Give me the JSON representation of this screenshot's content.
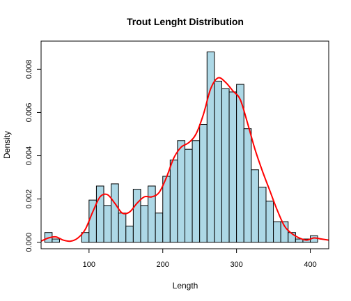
{
  "chart_data": {
    "type": "bar",
    "title": "Trout Lenght Distribution",
    "xlabel": "Length",
    "ylabel": "Density",
    "xlim": [
      35,
      425
    ],
    "ylim": [
      -0.0003,
      0.0093
    ],
    "xticks": [
      100,
      200,
      300,
      400
    ],
    "xtick_labels": [
      "100",
      "200",
      "300",
      "400"
    ],
    "yticks": [
      0.0,
      0.002,
      0.004,
      0.006,
      0.008
    ],
    "ytick_labels": [
      "0.000",
      "0.002",
      "0.004",
      "0.006",
      "0.008"
    ],
    "bin_width": 10,
    "bins": [
      {
        "x0": 40,
        "x1": 50,
        "density": 0.00045
      },
      {
        "x0": 50,
        "x1": 60,
        "density": 0.00015
      },
      {
        "x0": 60,
        "x1": 70,
        "density": 0.0
      },
      {
        "x0": 70,
        "x1": 80,
        "density": 0.0
      },
      {
        "x0": 80,
        "x1": 90,
        "density": 0.0
      },
      {
        "x0": 90,
        "x1": 100,
        "density": 0.00045
      },
      {
        "x0": 100,
        "x1": 110,
        "density": 0.00195
      },
      {
        "x0": 110,
        "x1": 120,
        "density": 0.0026
      },
      {
        "x0": 120,
        "x1": 130,
        "density": 0.0017
      },
      {
        "x0": 130,
        "x1": 140,
        "density": 0.0027
      },
      {
        "x0": 140,
        "x1": 150,
        "density": 0.00135
      },
      {
        "x0": 150,
        "x1": 160,
        "density": 0.00075
      },
      {
        "x0": 160,
        "x1": 170,
        "density": 0.00245
      },
      {
        "x0": 170,
        "x1": 180,
        "density": 0.0017
      },
      {
        "x0": 180,
        "x1": 190,
        "density": 0.0026
      },
      {
        "x0": 190,
        "x1": 200,
        "density": 0.00135
      },
      {
        "x0": 200,
        "x1": 210,
        "density": 0.00305
      },
      {
        "x0": 210,
        "x1": 220,
        "density": 0.0038
      },
      {
        "x0": 220,
        "x1": 230,
        "density": 0.0047
      },
      {
        "x0": 230,
        "x1": 240,
        "density": 0.0043
      },
      {
        "x0": 240,
        "x1": 250,
        "density": 0.0047
      },
      {
        "x0": 250,
        "x1": 260,
        "density": 0.00545
      },
      {
        "x0": 260,
        "x1": 270,
        "density": 0.0088
      },
      {
        "x0": 270,
        "x1": 280,
        "density": 0.00745
      },
      {
        "x0": 280,
        "x1": 290,
        "density": 0.0071
      },
      {
        "x0": 290,
        "x1": 300,
        "density": 0.00695
      },
      {
        "x0": 300,
        "x1": 310,
        "density": 0.0073
      },
      {
        "x0": 310,
        "x1": 320,
        "density": 0.00525
      },
      {
        "x0": 320,
        "x1": 330,
        "density": 0.00335
      },
      {
        "x0": 330,
        "x1": 340,
        "density": 0.00255
      },
      {
        "x0": 340,
        "x1": 350,
        "density": 0.0019
      },
      {
        "x0": 350,
        "x1": 360,
        "density": 0.00095
      },
      {
        "x0": 360,
        "x1": 370,
        "density": 0.00095
      },
      {
        "x0": 370,
        "x1": 380,
        "density": 0.00045
      },
      {
        "x0": 380,
        "x1": 390,
        "density": 0.00015
      },
      {
        "x0": 390,
        "x1": 400,
        "density": 0.00015
      },
      {
        "x0": 400,
        "x1": 410,
        "density": 0.0003
      },
      {
        "x0": 410,
        "x1": 420,
        "density": 0.0
      }
    ],
    "density_curve": {
      "x": [
        35,
        45,
        55,
        65,
        75,
        85,
        95,
        105,
        115,
        125,
        135,
        145,
        155,
        165,
        175,
        185,
        195,
        205,
        215,
        225,
        235,
        245,
        255,
        265,
        275,
        285,
        295,
        305,
        315,
        325,
        335,
        345,
        355,
        365,
        375,
        385,
        395,
        405,
        415,
        425
      ],
      "y": [
        5e-05,
        0.0002,
        0.00025,
        0.0001,
        5e-05,
        0.0002,
        0.0006,
        0.0014,
        0.0021,
        0.0022,
        0.0018,
        0.00135,
        0.0014,
        0.0018,
        0.0021,
        0.0021,
        0.0023,
        0.003,
        0.0039,
        0.0044,
        0.0046,
        0.005,
        0.0059,
        0.0071,
        0.0076,
        0.0074,
        0.007,
        0.0066,
        0.0055,
        0.0043,
        0.0033,
        0.0024,
        0.0015,
        0.00075,
        0.0004,
        0.0002,
        0.0001,
        0.0002,
        0.00015,
        0.0001
      ]
    },
    "colors": {
      "bar_fill": "#add8e6",
      "bar_stroke": "#000000",
      "curve": "#ff0000"
    },
    "grid": false,
    "legend": "none"
  }
}
